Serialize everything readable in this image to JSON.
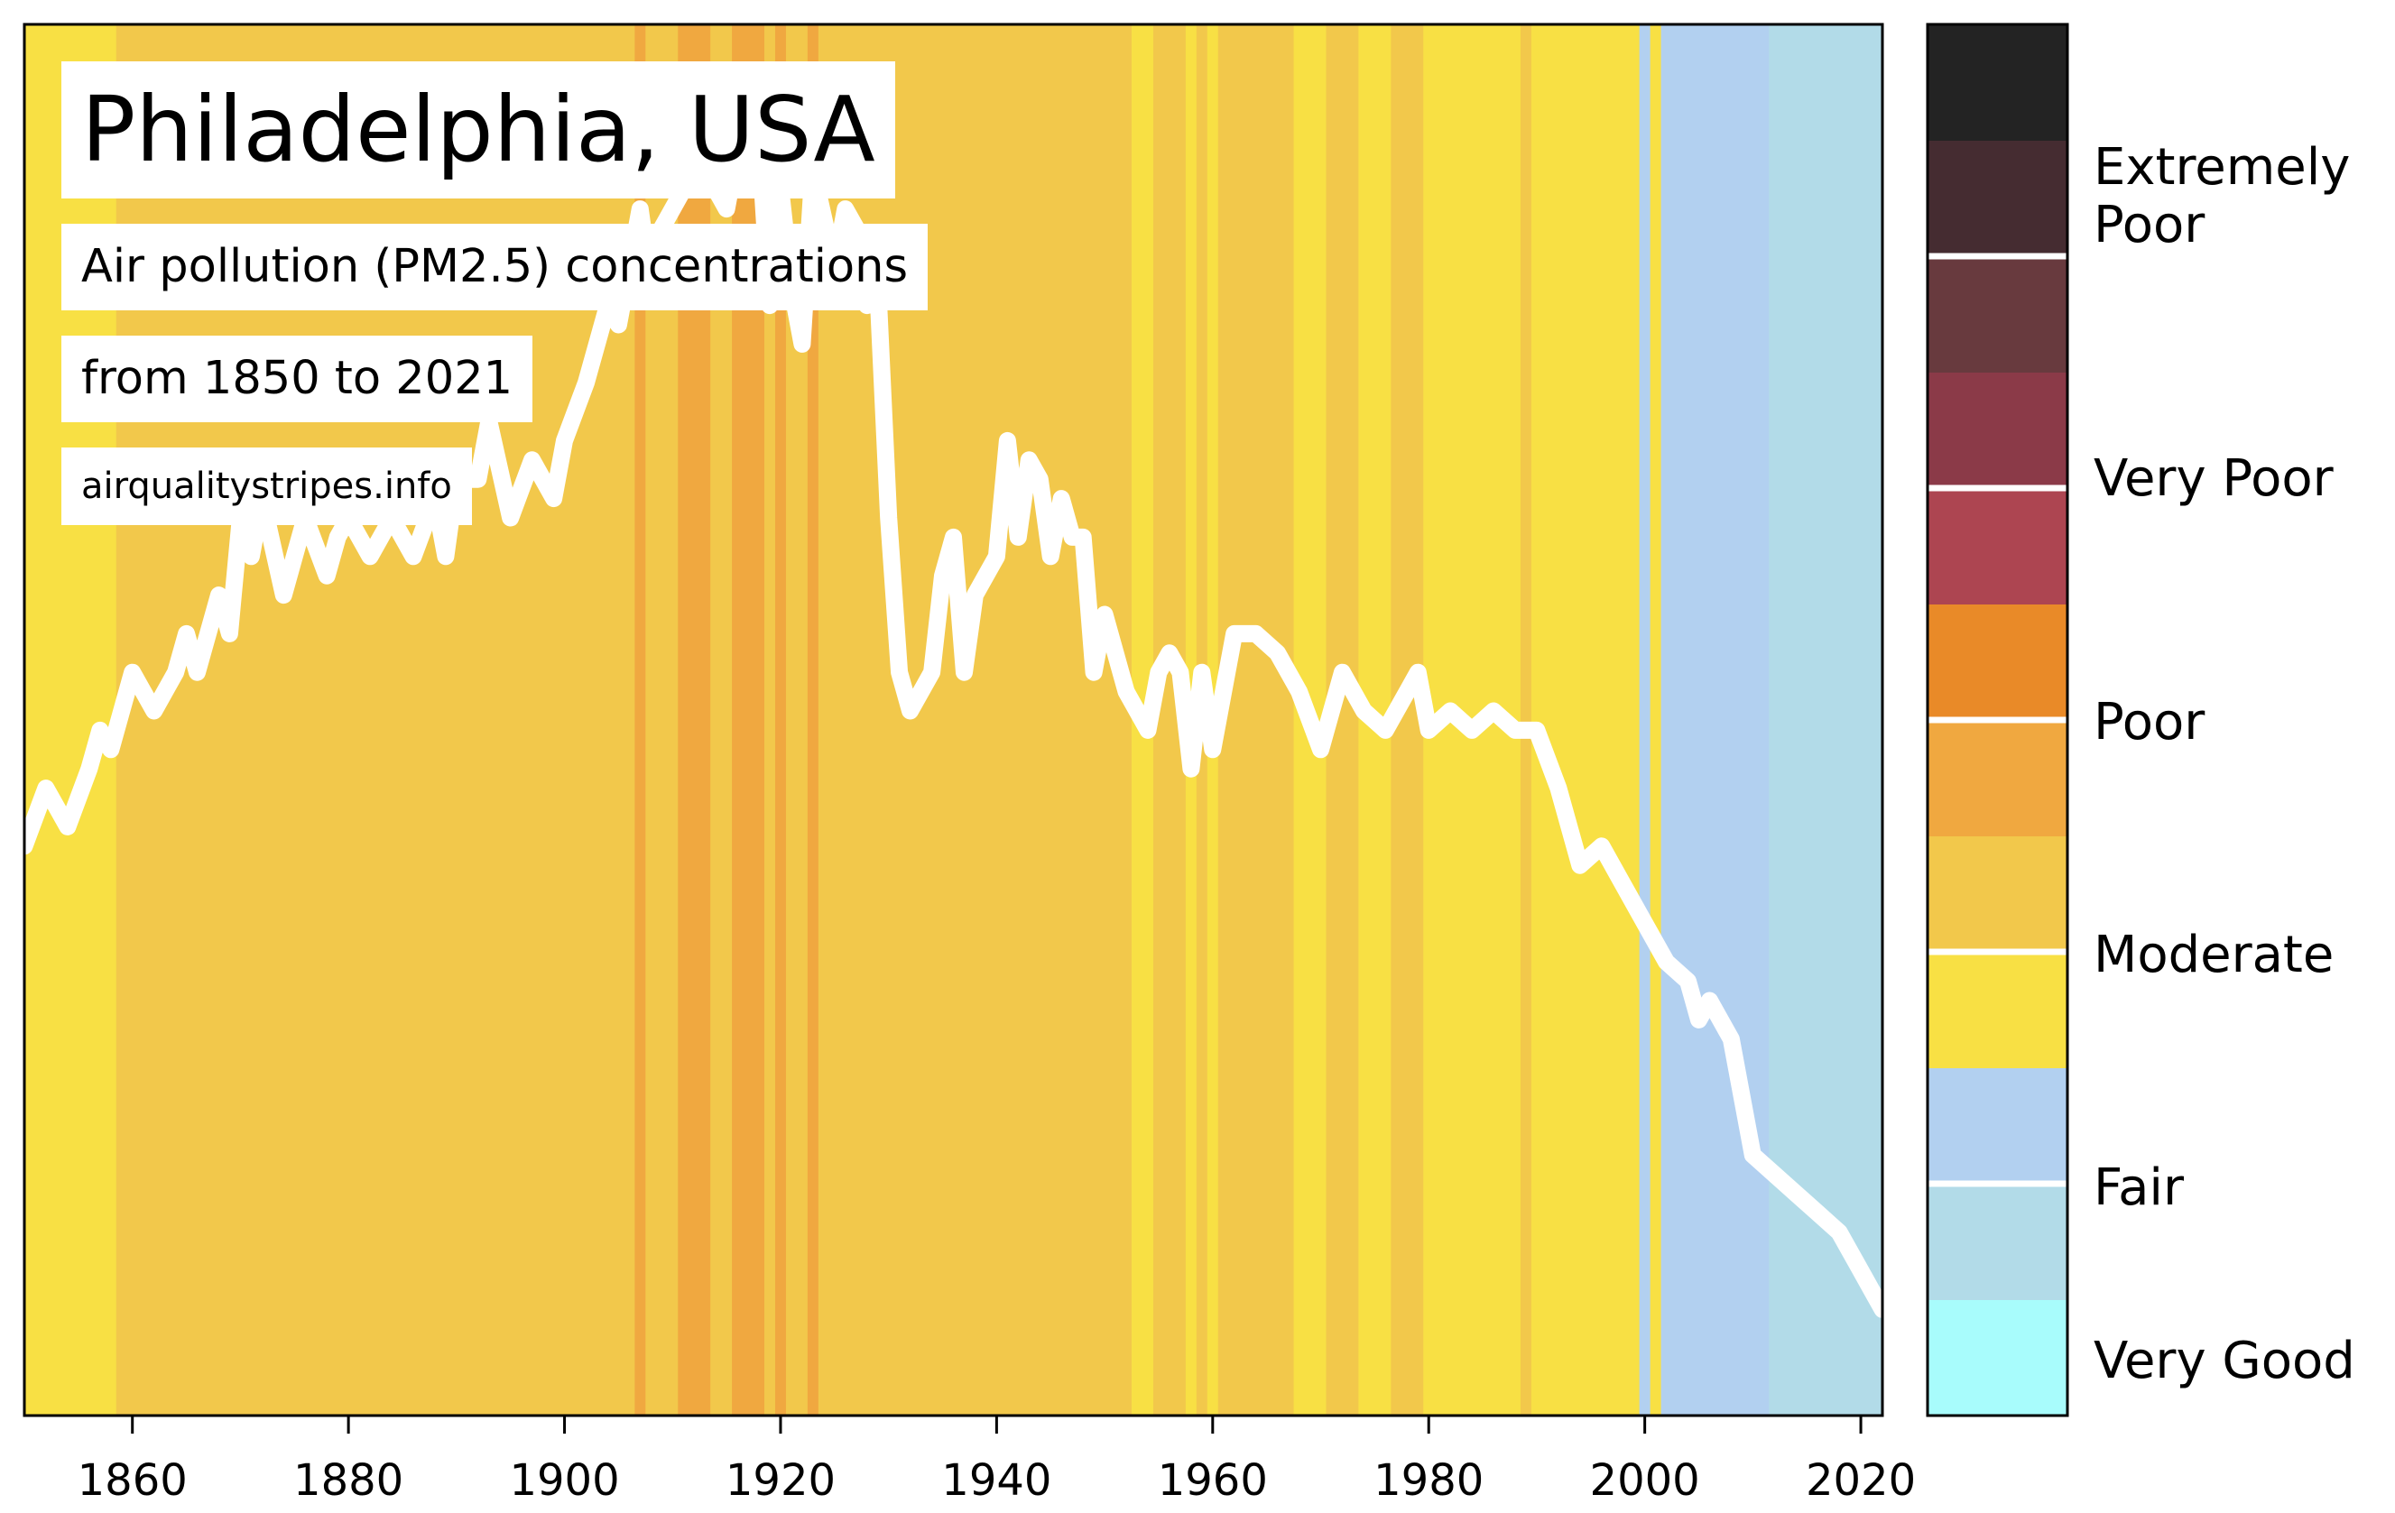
{
  "header": {
    "title": "Philadelphia, USA",
    "subtitle": "Air pollution (PM2.5) concentrations",
    "range": "from 1850 to 2021",
    "source": "airqualitystripes.info"
  },
  "chart_data": {
    "type": "heatmap",
    "x_range": [
      1850,
      2022
    ],
    "x_ticks": [
      "1860",
      "1880",
      "1900",
      "1920",
      "1940",
      "1960",
      "1980",
      "2000",
      "2020"
    ],
    "stripes": [
      {
        "from": 1850,
        "to": 1858.5,
        "color": "#f8e044"
      },
      {
        "from": 1858.5,
        "to": 1906.5,
        "color": "#f2c84b"
      },
      {
        "from": 1906.5,
        "to": 1907.5,
        "color": "#f0a840"
      },
      {
        "from": 1907.5,
        "to": 1910.5,
        "color": "#f2c84b"
      },
      {
        "from": 1910.5,
        "to": 1913.5,
        "color": "#f0a840"
      },
      {
        "from": 1913.5,
        "to": 1915.5,
        "color": "#f2c84b"
      },
      {
        "from": 1915.5,
        "to": 1918.5,
        "color": "#f0a840"
      },
      {
        "from": 1918.5,
        "to": 1919.5,
        "color": "#f2c84b"
      },
      {
        "from": 1919.5,
        "to": 1920.5,
        "color": "#f0a840"
      },
      {
        "from": 1920.5,
        "to": 1922.5,
        "color": "#f2c84b"
      },
      {
        "from": 1922.5,
        "to": 1923.5,
        "color": "#f0a840"
      },
      {
        "from": 1923.5,
        "to": 1952.5,
        "color": "#f2c84b"
      },
      {
        "from": 1952.5,
        "to": 1954.5,
        "color": "#f8e044"
      },
      {
        "from": 1954.5,
        "to": 1957.5,
        "color": "#f2c84b"
      },
      {
        "from": 1957.5,
        "to": 1958.5,
        "color": "#f8e044"
      },
      {
        "from": 1958.5,
        "to": 1959.5,
        "color": "#f2c84b"
      },
      {
        "from": 1959.5,
        "to": 1960.5,
        "color": "#f8e044"
      },
      {
        "from": 1960.5,
        "to": 1967.5,
        "color": "#f2c84b"
      },
      {
        "from": 1967.5,
        "to": 1970.5,
        "color": "#f8e044"
      },
      {
        "from": 1970.5,
        "to": 1973.5,
        "color": "#f2c84b"
      },
      {
        "from": 1973.5,
        "to": 1976.5,
        "color": "#f8e044"
      },
      {
        "from": 1976.5,
        "to": 1979.5,
        "color": "#f2c84b"
      },
      {
        "from": 1979.5,
        "to": 1988.5,
        "color": "#f8e044"
      },
      {
        "from": 1988.5,
        "to": 1989.5,
        "color": "#f2c84b"
      },
      {
        "from": 1989.5,
        "to": 1999.5,
        "color": "#f8e044"
      },
      {
        "from": 1999.5,
        "to": 2000.5,
        "color": "#b2d0f0"
      },
      {
        "from": 2000.5,
        "to": 2001.5,
        "color": "#f8e044"
      },
      {
        "from": 2001.5,
        "to": 2011.5,
        "color": "#b2d0f0"
      },
      {
        "from": 2011.5,
        "to": 2022,
        "color": "#b2dbe8"
      }
    ],
    "trend_line": {
      "color": "#ffffff",
      "x": [
        1850,
        1852,
        1854,
        1856,
        1857,
        1858,
        1860,
        1862,
        1864,
        1865,
        1866,
        1868,
        1869,
        1870,
        1871,
        1872,
        1874,
        1876,
        1878,
        1879,
        1880,
        1882,
        1884,
        1886,
        1888,
        1889,
        1890,
        1892,
        1893,
        1895,
        1897,
        1899,
        1900,
        1902,
        1904,
        1905,
        1906,
        1907,
        1908,
        1909,
        1911,
        1913,
        1915,
        1917,
        1918,
        1919,
        1920,
        1921,
        1922,
        1923,
        1925,
        1926,
        1927,
        1928,
        1929,
        1930,
        1931,
        1932,
        1934,
        1935,
        1936,
        1937,
        1938,
        1940,
        1941,
        1942,
        1943,
        1944,
        1945,
        1946,
        1947,
        1948,
        1949,
        1950,
        1952,
        1954,
        1955,
        1956,
        1957,
        1958,
        1959,
        1960,
        1962,
        1964,
        1966,
        1968,
        1970,
        1972,
        1974,
        1976,
        1978,
        1979,
        1980,
        1982,
        1984,
        1986,
        1988,
        1990,
        1992,
        1994,
        1996,
        1998,
        2000,
        2002,
        2004,
        2005,
        2006,
        2008,
        2010,
        2012,
        2014,
        2016,
        2018,
        2020,
        2021,
        2022
      ],
      "y": [
        9.6,
        9.9,
        9.7,
        10.0,
        10.2,
        10.1,
        10.5,
        10.3,
        10.5,
        10.7,
        10.5,
        10.9,
        10.7,
        11.3,
        11.1,
        11.4,
        10.9,
        11.3,
        11.0,
        11.2,
        11.3,
        11.1,
        11.3,
        11.1,
        11.4,
        11.1,
        11.5,
        11.5,
        11.8,
        11.3,
        11.6,
        11.4,
        11.7,
        12.0,
        12.4,
        12.3,
        12.6,
        12.9,
        12.5,
        12.8,
        13.0,
        13.1,
        12.9,
        13.5,
        13.3,
        12.4,
        13.0,
        12.5,
        12.2,
        13.1,
        12.6,
        12.9,
        12.8,
        12.4,
        12.5,
        11.3,
        10.5,
        10.3,
        10.5,
        11.0,
        11.2,
        10.5,
        10.9,
        11.1,
        11.7,
        11.2,
        11.6,
        11.5,
        11.1,
        11.4,
        11.2,
        11.2,
        10.5,
        10.8,
        10.4,
        10.2,
        10.5,
        10.6,
        10.5,
        10.0,
        10.5,
        10.1,
        10.7,
        10.7,
        10.6,
        10.4,
        10.1,
        10.5,
        10.3,
        10.2,
        10.4,
        10.5,
        10.2,
        10.3,
        10.2,
        10.3,
        10.2,
        10.2,
        9.9,
        9.5,
        9.6,
        9.4,
        9.2,
        9.0,
        8.9,
        8.7,
        8.8,
        8.6,
        8.0,
        7.9,
        7.8,
        7.7,
        7.6,
        7.4,
        7.3,
        7.2,
        7.4
      ]
    },
    "colorbar": {
      "bands": [
        "#a8fcfc",
        "#b2dbe8",
        "#b2d0f0",
        "#f8e044",
        "#f2c84b",
        "#f0a840",
        "#e98a28",
        "#ad4551",
        "#8b3a48",
        "#683a3e",
        "#452c31",
        "#232323"
      ],
      "categories": [
        "Very Good",
        "Fair",
        "Moderate",
        "Poor",
        "Very Poor",
        "Extremely\nPoor"
      ]
    }
  }
}
